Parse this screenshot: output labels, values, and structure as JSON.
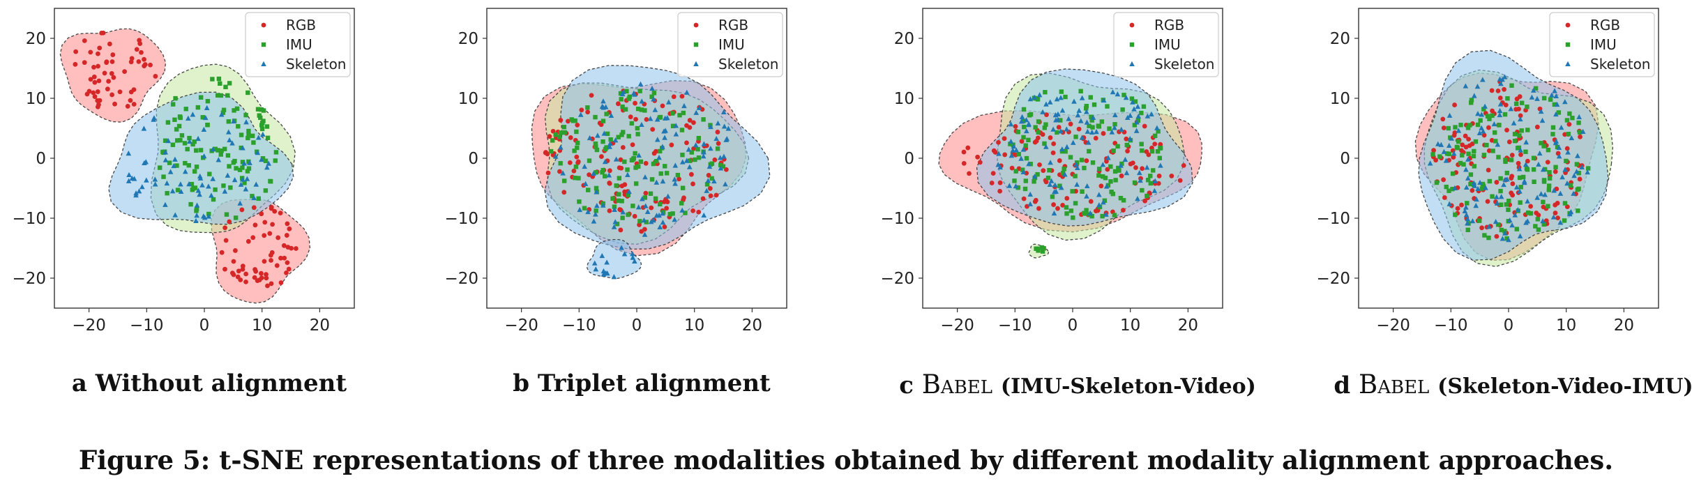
{
  "caption": "Figure 5: t-SNE representations of three modalities obtained by different modality alignment approaches.",
  "colors": {
    "RGB": "#d62728",
    "IMU": "#2ca02c",
    "Skeleton": "#1f77b4"
  },
  "chart_data": [
    {
      "type": "scatter",
      "subcaption": {
        "label": "a",
        "text": "Without alignment"
      },
      "xlim": [
        -26,
        26
      ],
      "ylim": [
        -25,
        25
      ],
      "xticks": [
        "−20",
        "−10",
        "0",
        "10",
        "20"
      ],
      "yticks": [
        "20",
        "10",
        "0",
        "−10",
        "−20"
      ],
      "legend": {
        "position": "top-right",
        "entries": [
          "RGB",
          "IMU",
          "Skeleton"
        ]
      },
      "clusters": [
        {
          "series": "RGB",
          "cx": -16,
          "cy": 14.5,
          "rx": 8,
          "ry": 7,
          "n": 55
        },
        {
          "series": "RGB",
          "cx": 9,
          "cy": -15,
          "rx": 7.5,
          "ry": 8,
          "n": 60
        },
        {
          "series": "IMU",
          "cx": 2,
          "cy": 1,
          "rx": 11,
          "ry": 13,
          "n": 120
        },
        {
          "series": "Skeleton",
          "cx": -1,
          "cy": -1,
          "rx": 14,
          "ry": 10,
          "n": 80
        }
      ]
    },
    {
      "type": "scatter",
      "subcaption": {
        "label": "b",
        "text": "Triplet alignment"
      },
      "xlim": [
        -26,
        26
      ],
      "ylim": [
        -25,
        25
      ],
      "xticks": [
        "−20",
        "−10",
        "0",
        "10",
        "20"
      ],
      "yticks": [
        "20",
        "10",
        "0",
        "−10",
        "−20"
      ],
      "legend": {
        "position": "top-right",
        "entries": [
          "RGB",
          "IMU",
          "Skeleton"
        ]
      },
      "clusters": [
        {
          "series": "RGB",
          "cx": 0,
          "cy": 0,
          "rx": 17,
          "ry": 13,
          "n": 140
        },
        {
          "series": "IMU",
          "cx": 0,
          "cy": 0,
          "rx": 16,
          "ry": 12,
          "n": 130
        },
        {
          "series": "Skeleton",
          "cx": 2,
          "cy": 0,
          "rx": 17,
          "ry": 14,
          "n": 110
        },
        {
          "series": "Skeleton",
          "cx": -4,
          "cy": -17,
          "rx": 4,
          "ry": 3,
          "n": 14
        }
      ]
    },
    {
      "type": "scatter",
      "subcaption": {
        "label": "c",
        "sc": "Babel",
        "text": "(IMU-Skeleton-Video)"
      },
      "xlim": [
        -26,
        26
      ],
      "ylim": [
        -25,
        25
      ],
      "xticks": [
        "−20",
        "−10",
        "0",
        "10",
        "20"
      ],
      "yticks": [
        "20",
        "10",
        "0",
        "−10",
        "−20"
      ],
      "legend": {
        "position": "top-right",
        "entries": [
          "RGB",
          "IMU",
          "Skeleton"
        ]
      },
      "clusters": [
        {
          "series": "RGB",
          "cx": 0,
          "cy": -1,
          "rx": 21,
          "ry": 9,
          "n": 120
        },
        {
          "series": "IMU",
          "cx": 2,
          "cy": 1,
          "rx": 15,
          "ry": 12,
          "n": 130
        },
        {
          "series": "IMU",
          "cx": -6,
          "cy": -15.5,
          "rx": 1.5,
          "ry": 1,
          "n": 6
        },
        {
          "series": "Skeleton",
          "cx": 2,
          "cy": 1,
          "rx": 16,
          "ry": 12,
          "n": 110
        }
      ]
    },
    {
      "type": "scatter",
      "subcaption": {
        "label": "d",
        "sc": "Babel",
        "text": "(Skeleton-Video-IMU)"
      },
      "xlim": [
        -26,
        26
      ],
      "ylim": [
        -25,
        25
      ],
      "xticks": [
        "−20",
        "−10",
        "0",
        "10",
        "20"
      ],
      "yticks": [
        "20",
        "10",
        "0",
        "−10",
        "−20"
      ],
      "legend": {
        "position": "top-right",
        "entries": [
          "RGB",
          "IMU",
          "Skeleton"
        ]
      },
      "clusters": [
        {
          "series": "RGB",
          "cx": 0,
          "cy": 0,
          "rx": 14,
          "ry": 14,
          "n": 140
        },
        {
          "series": "IMU",
          "cx": 1,
          "cy": -1,
          "rx": 15,
          "ry": 14,
          "n": 140
        },
        {
          "series": "Skeleton",
          "cx": 0,
          "cy": 0,
          "rx": 15,
          "ry": 15,
          "n": 120
        }
      ]
    }
  ]
}
